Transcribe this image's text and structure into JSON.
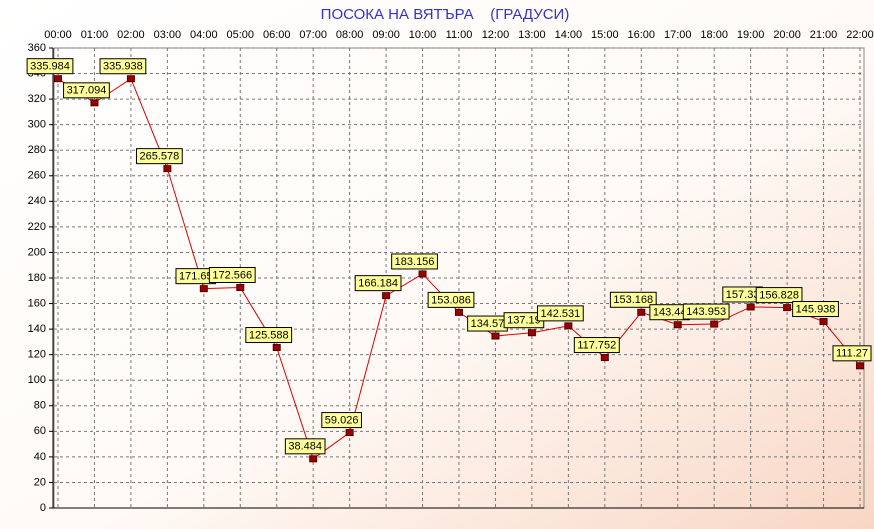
{
  "chart_data": {
    "type": "line",
    "title": "ПОСОКА НА ВЯТЪРА    (ГРАДУСИ)",
    "categories": [
      "00:00",
      "01:00",
      "02:00",
      "03:00",
      "04:00",
      "05:00",
      "06:00",
      "07:00",
      "08:00",
      "09:00",
      "10:00",
      "11:00",
      "12:00",
      "13:00",
      "14:00",
      "15:00",
      "16:00",
      "17:00",
      "18:00",
      "19:00",
      "20:00",
      "21:00",
      "22:00"
    ],
    "values": [
      335.984,
      317.094,
      335.938,
      265.578,
      171.65,
      172.566,
      125.588,
      38.484,
      59.026,
      166.184,
      183.156,
      153.086,
      134.57,
      137.19,
      142.531,
      117.752,
      153.168,
      143.44,
      143.953,
      157.33,
      156.828,
      145.938,
      111.27
    ],
    "color": "#dd0000",
    "marker_color": "#990000",
    "label_fill": "#ffff99",
    "ylim": [
      0,
      360
    ],
    "yticks": [
      0,
      20,
      40,
      60,
      80,
      100,
      120,
      140,
      160,
      180,
      200,
      220,
      240,
      260,
      280,
      300,
      320,
      340,
      360
    ],
    "grid": true
  }
}
